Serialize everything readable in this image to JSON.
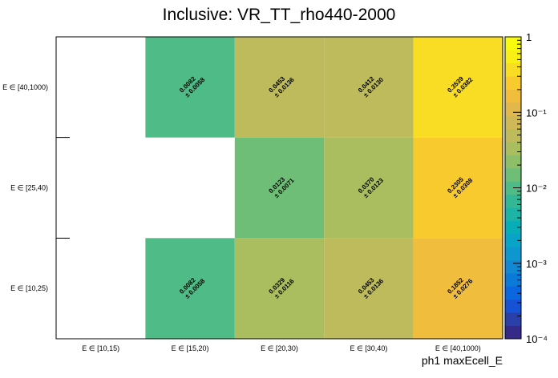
{
  "chart_data": {
    "type": "heatmap",
    "title": "Inclusive: VR_TT_rho440-2000",
    "xlabel": "ph1 maxEcell_E",
    "ylabel": "",
    "x_categories": [
      "E ∈ [10,15)",
      "E ∈ [15,20)",
      "E ∈ [20,30)",
      "E ∈ [30,40)",
      "E ∈ [40,1000)"
    ],
    "y_categories": [
      "E ∈ [10,25)",
      "E ∈ [25,40)",
      "E ∈ [40,1000)"
    ],
    "z_scale": "log",
    "zlim": [
      0.0001,
      1
    ],
    "z_tick_labels": [
      "1",
      "10⁻¹",
      "10⁻²",
      "10⁻³",
      "10⁻⁴"
    ],
    "cells": [
      {
        "x": 1,
        "y": 0,
        "value": "0.0082",
        "error": "± 0.0058",
        "z": 0.0082
      },
      {
        "x": 2,
        "y": 0,
        "value": "0.0329",
        "error": "± 0.0116",
        "z": 0.0329
      },
      {
        "x": 3,
        "y": 0,
        "value": "0.0453",
        "error": "± 0.0136",
        "z": 0.0453
      },
      {
        "x": 4,
        "y": 0,
        "value": "0.1852",
        "error": "± 0.0276",
        "z": 0.1852
      },
      {
        "x": 2,
        "y": 1,
        "value": "0.0123",
        "error": "± 0.0071",
        "z": 0.0123
      },
      {
        "x": 3,
        "y": 1,
        "value": "0.0370",
        "error": "± 0.0123",
        "z": 0.037
      },
      {
        "x": 4,
        "y": 1,
        "value": "0.2305",
        "error": "± 0.0308",
        "z": 0.2305
      },
      {
        "x": 1,
        "y": 2,
        "value": "0.0082",
        "error": "± 0.0058",
        "z": 0.0082
      },
      {
        "x": 2,
        "y": 2,
        "value": "0.0453",
        "error": "± 0.0136",
        "z": 0.0453
      },
      {
        "x": 3,
        "y": 2,
        "value": "0.0412",
        "error": "± 0.0130",
        "z": 0.0412
      },
      {
        "x": 4,
        "y": 2,
        "value": "0.3539",
        "error": "± 0.0382",
        "z": 0.3539
      }
    ],
    "palette": [
      "#352a87",
      "#2b3fa8",
      "#1652d4",
      "#0a67e0",
      "#0b79d8",
      "#1287d3",
      "#0e97ce",
      "#08a3c6",
      "#07aeb7",
      "#1db3a5",
      "#33b797",
      "#4fbb86",
      "#6fbe77",
      "#8ebf68",
      "#aabd5f",
      "#bdbb5c",
      "#cfb856",
      "#e2b84d",
      "#f1bd3c",
      "#f8ca2e",
      "#f9dc24",
      "#f9ee16",
      "#f9fb0e"
    ]
  }
}
